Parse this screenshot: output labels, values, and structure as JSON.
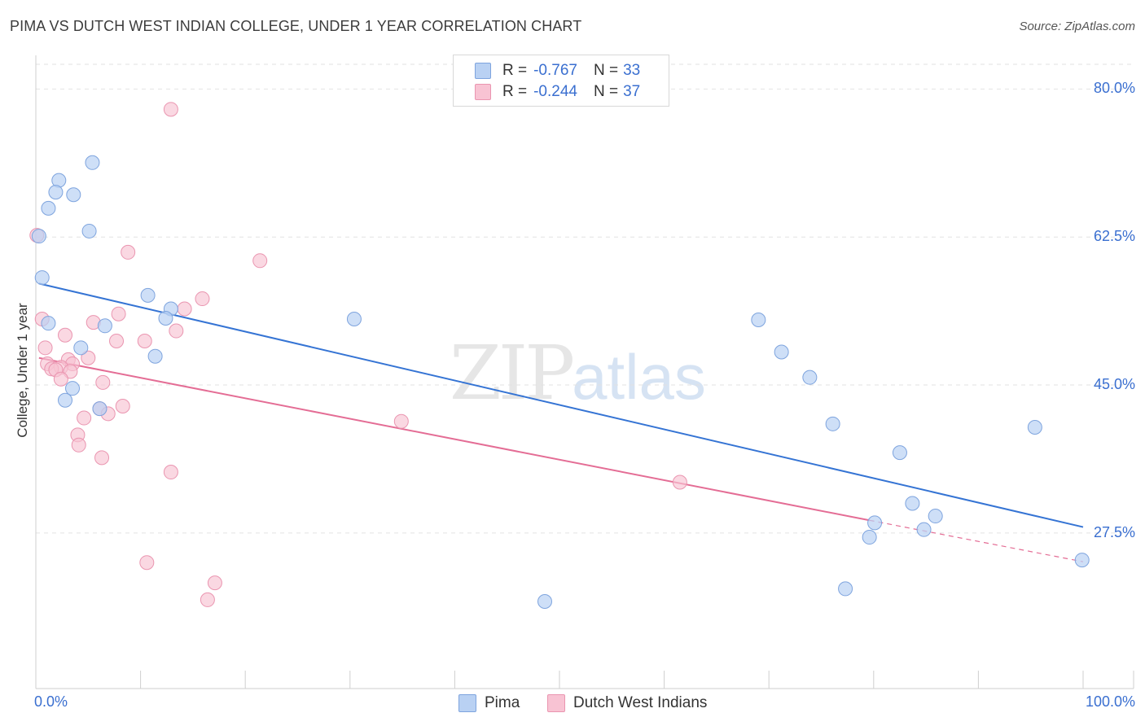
{
  "title": "PIMA VS DUTCH WEST INDIAN COLLEGE, UNDER 1 YEAR CORRELATION CHART",
  "source": "Source: ZipAtlas.com",
  "watermark": {
    "zip": "ZIP",
    "atlas": "atlas"
  },
  "legend": {
    "rows": [
      {
        "r_label": "R =",
        "r_value": "-0.767",
        "n_label": "N =",
        "n_value": "33"
      },
      {
        "r_label": "R =",
        "r_value": "-0.244",
        "n_label": "N =",
        "n_value": "37"
      }
    ]
  },
  "bottom_legend": [
    {
      "label": "Pima"
    },
    {
      "label": "Dutch West Indians"
    }
  ],
  "colors": {
    "pima_fill": "#b9d1f3",
    "pima_stroke": "#7ea4de",
    "pima_line": "#3574d4",
    "dwi_fill": "#f8c3d3",
    "dwi_stroke": "#ea95b0",
    "dwi_line": "#e46d95",
    "accent_text": "#3a6fd0"
  },
  "chart_data": {
    "type": "scatter",
    "title": "PIMA VS DUTCH WEST INDIAN COLLEGE, UNDER 1 YEAR CORRELATION CHART",
    "xlabel": "",
    "ylabel": "College, Under 1 year",
    "xlim": [
      0,
      100
    ],
    "ylim": [
      9.1,
      83.6
    ],
    "x_tick_labels": [
      "0.0%",
      "100.0%"
    ],
    "y_ticks": [
      27.5,
      45.0,
      62.5,
      80.0
    ],
    "y_tick_labels": [
      "27.5%",
      "45.0%",
      "62.5%",
      "80.0%"
    ],
    "grid": true,
    "series": [
      {
        "name": "Pima",
        "points": [
          [
            0.3,
            62.6
          ],
          [
            1.2,
            65.9
          ],
          [
            2.2,
            69.2
          ],
          [
            1.9,
            67.8
          ],
          [
            3.6,
            67.5
          ],
          [
            5.4,
            71.3
          ],
          [
            5.1,
            63.2
          ],
          [
            0.6,
            57.7
          ],
          [
            1.2,
            52.3
          ],
          [
            4.3,
            49.4
          ],
          [
            6.6,
            52.0
          ],
          [
            10.7,
            55.6
          ],
          [
            12.9,
            54.0
          ],
          [
            12.4,
            52.9
          ],
          [
            11.4,
            48.4
          ],
          [
            3.5,
            44.6
          ],
          [
            2.8,
            43.2
          ],
          [
            6.1,
            42.2
          ],
          [
            30.4,
            52.8
          ],
          [
            69.0,
            52.7
          ],
          [
            71.2,
            48.9
          ],
          [
            73.9,
            45.9
          ],
          [
            76.1,
            40.4
          ],
          [
            82.5,
            37.0
          ],
          [
            83.7,
            31.0
          ],
          [
            95.4,
            40.0
          ],
          [
            85.9,
            29.5
          ],
          [
            80.1,
            28.7
          ],
          [
            79.6,
            27.0
          ],
          [
            84.8,
            27.9
          ],
          [
            48.6,
            19.4
          ],
          [
            77.3,
            20.9
          ],
          [
            99.9,
            24.3
          ]
        ],
        "trend": {
          "x": [
            0.3,
            100
          ],
          "y": [
            57.0,
            28.2
          ]
        }
      },
      {
        "name": "Dutch West Indians",
        "points": [
          [
            12.9,
            77.6
          ],
          [
            0.1,
            62.7
          ],
          [
            8.8,
            60.7
          ],
          [
            21.4,
            59.7
          ],
          [
            15.9,
            55.2
          ],
          [
            14.2,
            54.0
          ],
          [
            7.9,
            53.4
          ],
          [
            0.6,
            52.8
          ],
          [
            5.5,
            52.4
          ],
          [
            13.4,
            51.4
          ],
          [
            2.8,
            50.9
          ],
          [
            7.7,
            50.2
          ],
          [
            10.4,
            50.2
          ],
          [
            0.9,
            49.4
          ],
          [
            5.0,
            48.2
          ],
          [
            3.1,
            48.0
          ],
          [
            1.1,
            47.5
          ],
          [
            3.5,
            47.5
          ],
          [
            2.4,
            47.1
          ],
          [
            1.5,
            46.9
          ],
          [
            1.9,
            46.8
          ],
          [
            3.3,
            46.6
          ],
          [
            2.4,
            45.7
          ],
          [
            6.4,
            45.3
          ],
          [
            8.3,
            42.5
          ],
          [
            6.1,
            42.2
          ],
          [
            6.9,
            41.6
          ],
          [
            4.6,
            41.1
          ],
          [
            34.9,
            40.7
          ],
          [
            4.0,
            39.1
          ],
          [
            4.1,
            37.9
          ],
          [
            6.3,
            36.4
          ],
          [
            12.9,
            34.7
          ],
          [
            61.5,
            33.5
          ],
          [
            10.6,
            24.0
          ],
          [
            17.1,
            21.6
          ],
          [
            16.4,
            19.6
          ]
        ],
        "trend": {
          "x": [
            0.3,
            79.6
          ],
          "y": [
            48.2,
            29.0
          ]
        },
        "trend_extension": {
          "x": [
            79.6,
            100
          ],
          "y": [
            29.0,
            24.1
          ]
        }
      }
    ]
  }
}
